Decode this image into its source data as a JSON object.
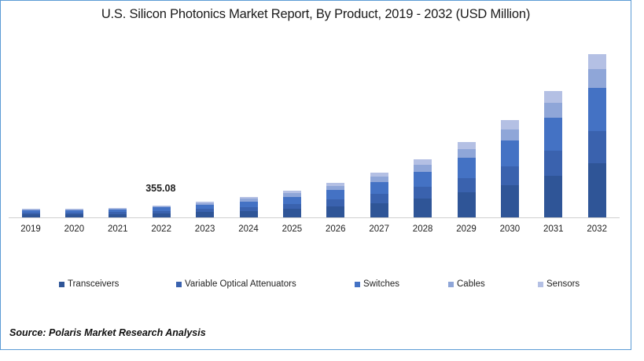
{
  "title": "U.S. Silicon Photonics Market Report, By Product, 2019 - 2032 (USD Million)",
  "source": "Source: Polaris  Market Research Analysis",
  "colors": {
    "border": "#5B9BD5",
    "Transceivers": "#2F5597",
    "Variable Optical Attenuators": "#3A62AE",
    "Switches": "#4472C4",
    "Cables": "#8FA6D8",
    "Sensors": "#B4C0E4"
  },
  "legend": [
    "Transceivers",
    "Variable Optical Attenuators",
    "Switches",
    "Cables",
    "Sensors"
  ],
  "annotation": {
    "year": "2022",
    "label": "355.08"
  },
  "chart_data": {
    "type": "bar",
    "stacked": true,
    "title": "U.S. Silicon Photonics Market Report, By Product, 2019 - 2032 (USD Million)",
    "xlabel": "",
    "ylabel": "",
    "categories": [
      "2019",
      "2020",
      "2021",
      "2022",
      "2023",
      "2024",
      "2025",
      "2026",
      "2027",
      "2028",
      "2029",
      "2030",
      "2031",
      "2032"
    ],
    "series": [
      {
        "name": "Transceivers",
        "values": [
          90,
          92,
          100,
          126,
          160,
          185,
          250,
          320,
          410,
          550,
          735,
          940,
          1215,
          1580
        ]
      },
      {
        "name": "Variable Optical Attenuators",
        "values": [
          50,
          51,
          55,
          69,
          92,
          115,
          140,
          205,
          275,
          345,
          410,
          550,
          735,
          940
        ]
      },
      {
        "name": "Switches",
        "values": [
          65,
          66,
          72,
          92,
          115,
          160,
          205,
          275,
          345,
          435,
          595,
          755,
          960,
          1260
        ]
      },
      {
        "name": "Cables",
        "values": [
          30,
          30,
          33,
          41,
          57,
          90,
          115,
          115,
          160,
          205,
          250,
          320,
          435,
          550
        ]
      },
      {
        "name": "Sensors",
        "values": [
          20,
          20,
          22,
          27,
          34,
          45,
          70,
          92,
          115,
          160,
          205,
          275,
          345,
          435
        ]
      }
    ],
    "annotations": [
      {
        "x": "2022",
        "text": "355.08"
      }
    ],
    "grid": false,
    "yaxis_visible": false,
    "legend_position": "bottom",
    "ylim": [
      0,
      5200
    ]
  }
}
